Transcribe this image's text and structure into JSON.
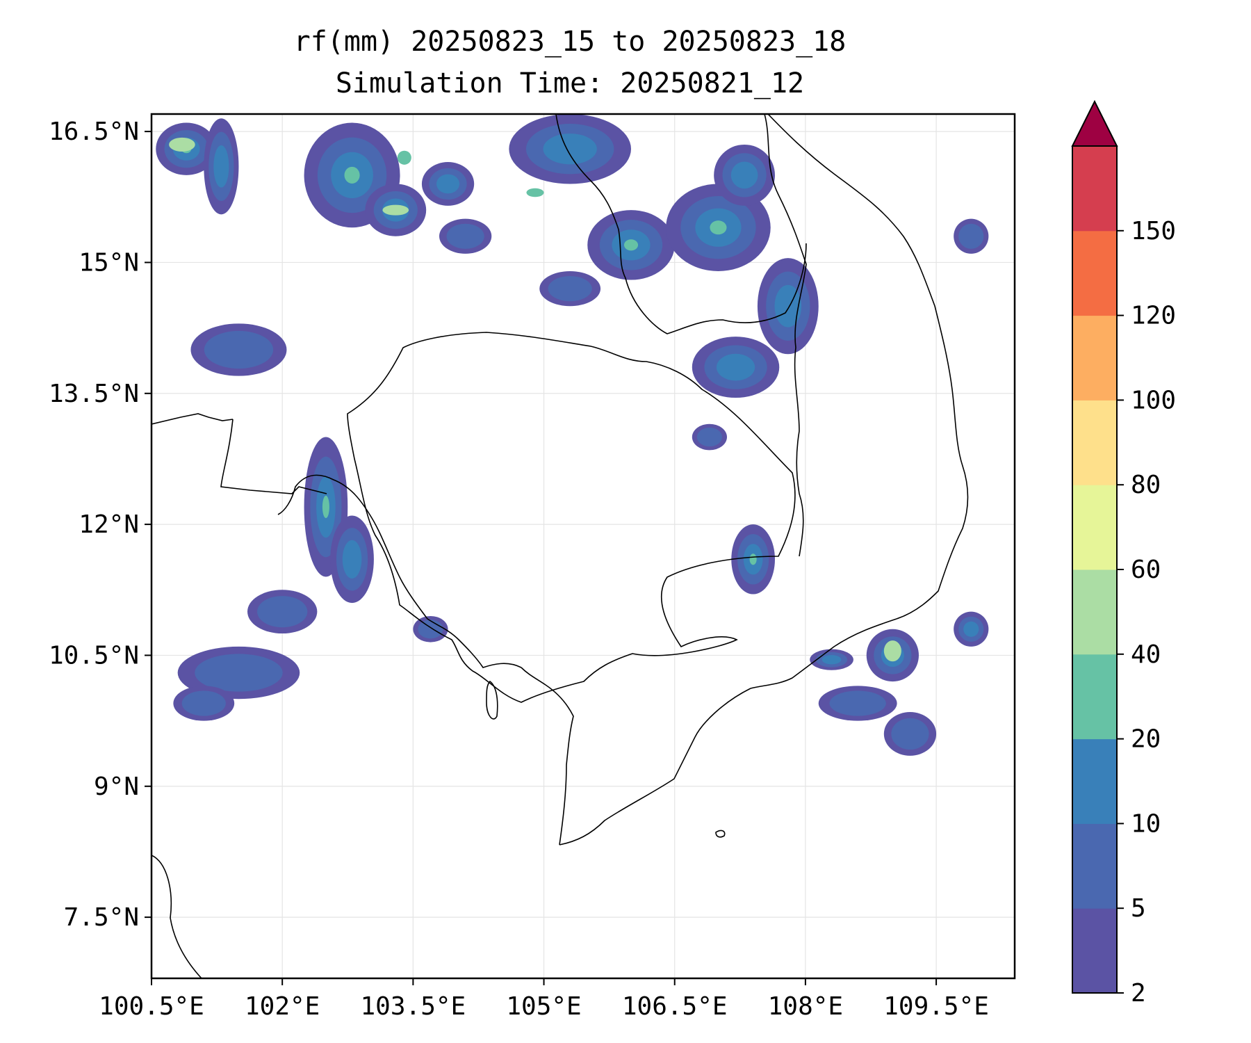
{
  "title_line1": "rf(mm) 20250823_15 to 20250823_18",
  "title_line2": "Simulation Time: 20250821_12",
  "map": {
    "lon_range": [
      100.5,
      110.4
    ],
    "lat_range": [
      6.8,
      16.7
    ],
    "x_ticks": [
      {
        "value": 100.5,
        "label": "100.5°E"
      },
      {
        "value": 102,
        "label": "102°E"
      },
      {
        "value": 103.5,
        "label": "103.5°E"
      },
      {
        "value": 105,
        "label": "105°E"
      },
      {
        "value": 106.5,
        "label": "106.5°E"
      },
      {
        "value": 108,
        "label": "108°E"
      },
      {
        "value": 109.5,
        "label": "109.5°E"
      }
    ],
    "y_ticks": [
      {
        "value": 16.5,
        "label": "16.5°N"
      },
      {
        "value": 15,
        "label": "15°N"
      },
      {
        "value": 13.5,
        "label": "13.5°N"
      },
      {
        "value": 12,
        "label": "12°N"
      },
      {
        "value": 10.5,
        "label": "10.5°N"
      },
      {
        "value": 9,
        "label": "9°N"
      },
      {
        "value": 7.5,
        "label": "7.5°N"
      }
    ],
    "grid": true,
    "rain_cells": [
      {
        "lon": 100.9,
        "lat": 16.3,
        "rx": 0.35,
        "ry": 0.3,
        "level": 20
      },
      {
        "lon": 101.3,
        "lat": 16.1,
        "rx": 0.2,
        "ry": 0.55,
        "level": 10
      },
      {
        "lon": 102.8,
        "lat": 16.0,
        "rx": 0.55,
        "ry": 0.6,
        "level": 20
      },
      {
        "lon": 103.3,
        "lat": 15.6,
        "rx": 0.35,
        "ry": 0.3,
        "level": 10
      },
      {
        "lon": 103.9,
        "lat": 15.9,
        "rx": 0.3,
        "ry": 0.25,
        "level": 10
      },
      {
        "lon": 104.1,
        "lat": 15.3,
        "rx": 0.3,
        "ry": 0.2,
        "level": 5
      },
      {
        "lon": 105.3,
        "lat": 16.3,
        "rx": 0.7,
        "ry": 0.4,
        "level": 10
      },
      {
        "lon": 106.0,
        "lat": 15.2,
        "rx": 0.5,
        "ry": 0.4,
        "level": 20
      },
      {
        "lon": 107.0,
        "lat": 15.4,
        "rx": 0.6,
        "ry": 0.5,
        "level": 20
      },
      {
        "lon": 107.3,
        "lat": 16.0,
        "rx": 0.35,
        "ry": 0.35,
        "level": 10
      },
      {
        "lon": 107.8,
        "lat": 14.5,
        "rx": 0.35,
        "ry": 0.55,
        "level": 10
      },
      {
        "lon": 107.2,
        "lat": 13.8,
        "rx": 0.5,
        "ry": 0.35,
        "level": 10
      },
      {
        "lon": 105.3,
        "lat": 14.7,
        "rx": 0.35,
        "ry": 0.2,
        "level": 5
      },
      {
        "lon": 101.5,
        "lat": 14.0,
        "rx": 0.55,
        "ry": 0.3,
        "level": 5
      },
      {
        "lon": 102.5,
        "lat": 12.2,
        "rx": 0.25,
        "ry": 0.8,
        "level": 20
      },
      {
        "lon": 102.8,
        "lat": 11.6,
        "rx": 0.25,
        "ry": 0.5,
        "level": 10
      },
      {
        "lon": 101.5,
        "lat": 10.3,
        "rx": 0.7,
        "ry": 0.3,
        "level": 5
      },
      {
        "lon": 102.0,
        "lat": 11.0,
        "rx": 0.4,
        "ry": 0.25,
        "level": 5
      },
      {
        "lon": 101.1,
        "lat": 9.95,
        "rx": 0.35,
        "ry": 0.2,
        "level": 5
      },
      {
        "lon": 103.7,
        "lat": 10.8,
        "rx": 0.2,
        "ry": 0.15,
        "level": 5
      },
      {
        "lon": 107.4,
        "lat": 11.6,
        "rx": 0.25,
        "ry": 0.4,
        "level": 20
      },
      {
        "lon": 106.9,
        "lat": 13.0,
        "rx": 0.2,
        "ry": 0.15,
        "level": 5
      },
      {
        "lon": 108.3,
        "lat": 10.45,
        "rx": 0.25,
        "ry": 0.12,
        "level": 10
      },
      {
        "lon": 109.0,
        "lat": 10.5,
        "rx": 0.3,
        "ry": 0.3,
        "level": 20
      },
      {
        "lon": 108.6,
        "lat": 9.95,
        "rx": 0.45,
        "ry": 0.2,
        "level": 5
      },
      {
        "lon": 109.2,
        "lat": 9.6,
        "rx": 0.3,
        "ry": 0.25,
        "level": 5
      },
      {
        "lon": 109.9,
        "lat": 10.8,
        "rx": 0.2,
        "ry": 0.2,
        "level": 10
      },
      {
        "lon": 109.9,
        "lat": 15.3,
        "rx": 0.2,
        "ry": 0.2,
        "level": 5
      }
    ],
    "rain_peaks": [
      {
        "lon": 100.85,
        "lat": 16.35,
        "rx": 0.15,
        "ry": 0.08,
        "level": 40
      },
      {
        "lon": 103.3,
        "lat": 15.6,
        "rx": 0.15,
        "ry": 0.06,
        "level": 40
      },
      {
        "lon": 103.4,
        "lat": 16.2,
        "rx": 0.08,
        "ry": 0.08,
        "level": 20
      },
      {
        "lon": 104.9,
        "lat": 15.8,
        "rx": 0.1,
        "ry": 0.05,
        "level": 20
      },
      {
        "lon": 109.0,
        "lat": 10.55,
        "rx": 0.1,
        "ry": 0.12,
        "level": 40
      }
    ]
  },
  "colorbar": {
    "levels": [
      2,
      5,
      10,
      20,
      40,
      60,
      80,
      100,
      120,
      150
    ],
    "labels": [
      "2",
      "5",
      "10",
      "20",
      "40",
      "60",
      "80",
      "100",
      "120",
      "150"
    ],
    "colors": [
      "#5b53a4",
      "#4a68b0",
      "#3980b9",
      "#66c2a5",
      "#abdda4",
      "#e6f598",
      "#fee08b",
      "#fdae61",
      "#f46d43",
      "#d53e4f"
    ],
    "extend_color": "#9e0142"
  }
}
